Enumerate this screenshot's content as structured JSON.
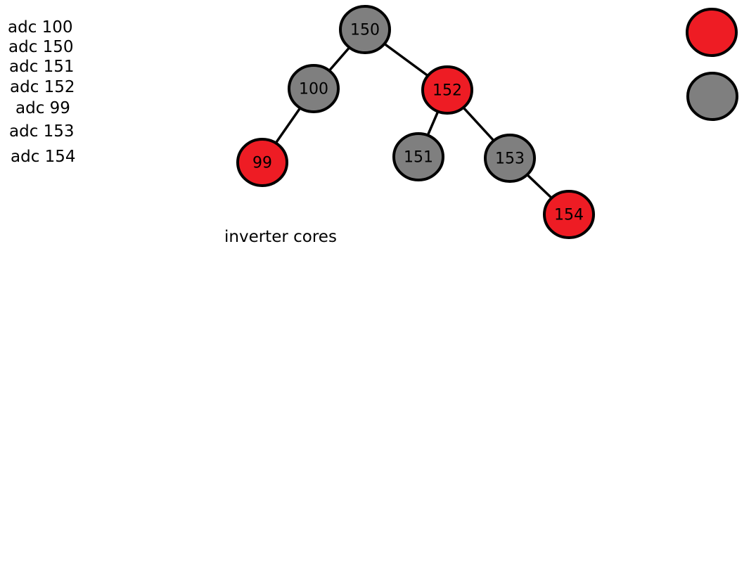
{
  "colors": {
    "red": "#ee1c24",
    "gray": "#7f7f7f",
    "outline": "#000000",
    "background": "#ffffff"
  },
  "insert_sequence": [
    "adc 100",
    "adc 150",
    "adc 151",
    "adc 152",
    "adc 99",
    "adc 153",
    "adc 154"
  ],
  "caption": "inverter cores",
  "tree": {
    "nodes": [
      {
        "id": "n150",
        "label": "150",
        "color": "gray"
      },
      {
        "id": "n100",
        "label": "100",
        "color": "gray"
      },
      {
        "id": "n152",
        "label": "152",
        "color": "red"
      },
      {
        "id": "n99",
        "label": "99",
        "color": "red"
      },
      {
        "id": "n151",
        "label": "151",
        "color": "gray"
      },
      {
        "id": "n153",
        "label": "153",
        "color": "gray"
      },
      {
        "id": "n154",
        "label": "154",
        "color": "red"
      }
    ],
    "edges": [
      {
        "from": "n150",
        "to": "n100"
      },
      {
        "from": "n150",
        "to": "n152"
      },
      {
        "from": "n100",
        "to": "n99"
      },
      {
        "from": "n152",
        "to": "n151"
      },
      {
        "from": "n152",
        "to": "n153"
      },
      {
        "from": "n153",
        "to": "n154"
      }
    ]
  },
  "legend": [
    {
      "color": "red"
    },
    {
      "color": "gray"
    }
  ]
}
